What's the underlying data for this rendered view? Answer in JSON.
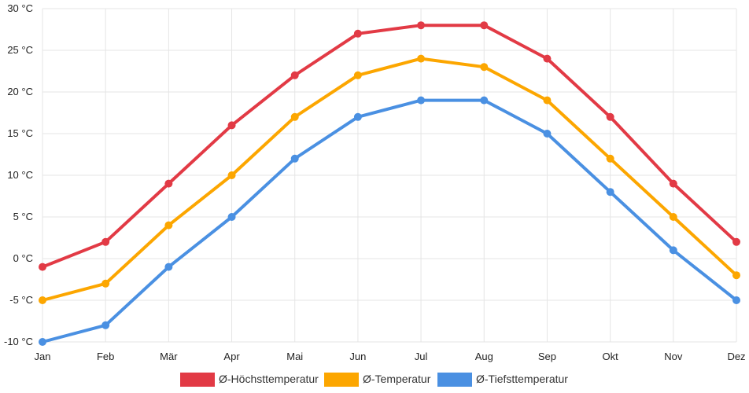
{
  "chart_data": {
    "type": "line",
    "categories": [
      "Jan",
      "Feb",
      "Mär",
      "Apr",
      "Mai",
      "Jun",
      "Jul",
      "Aug",
      "Sep",
      "Okt",
      "Nov",
      "Dez"
    ],
    "series": [
      {
        "name": "Ø-Höchsttemperatur",
        "color": "#e23a45",
        "values": [
          -1,
          2,
          9,
          16,
          22,
          27,
          28,
          28,
          24,
          17,
          9,
          2
        ]
      },
      {
        "name": "Ø-Temperatur",
        "color": "#fca600",
        "values": [
          -5,
          -3,
          4,
          10,
          17,
          22,
          24,
          23,
          19,
          12,
          5,
          -2
        ]
      },
      {
        "name": "Ø-Tiefsttemperatur",
        "color": "#4a90e2",
        "values": [
          -10,
          -8,
          -1,
          5,
          12,
          17,
          19,
          19,
          15,
          8,
          1,
          -5
        ]
      }
    ],
    "yticks": [
      "-10 °C",
      "-5 °C",
      "0 °C",
      "5 °C",
      "10 °C",
      "15 °C",
      "20 °C",
      "25 °C",
      "30 °C"
    ],
    "ylim": [
      -10,
      30
    ],
    "grid": true,
    "legend_position": "bottom-center"
  }
}
